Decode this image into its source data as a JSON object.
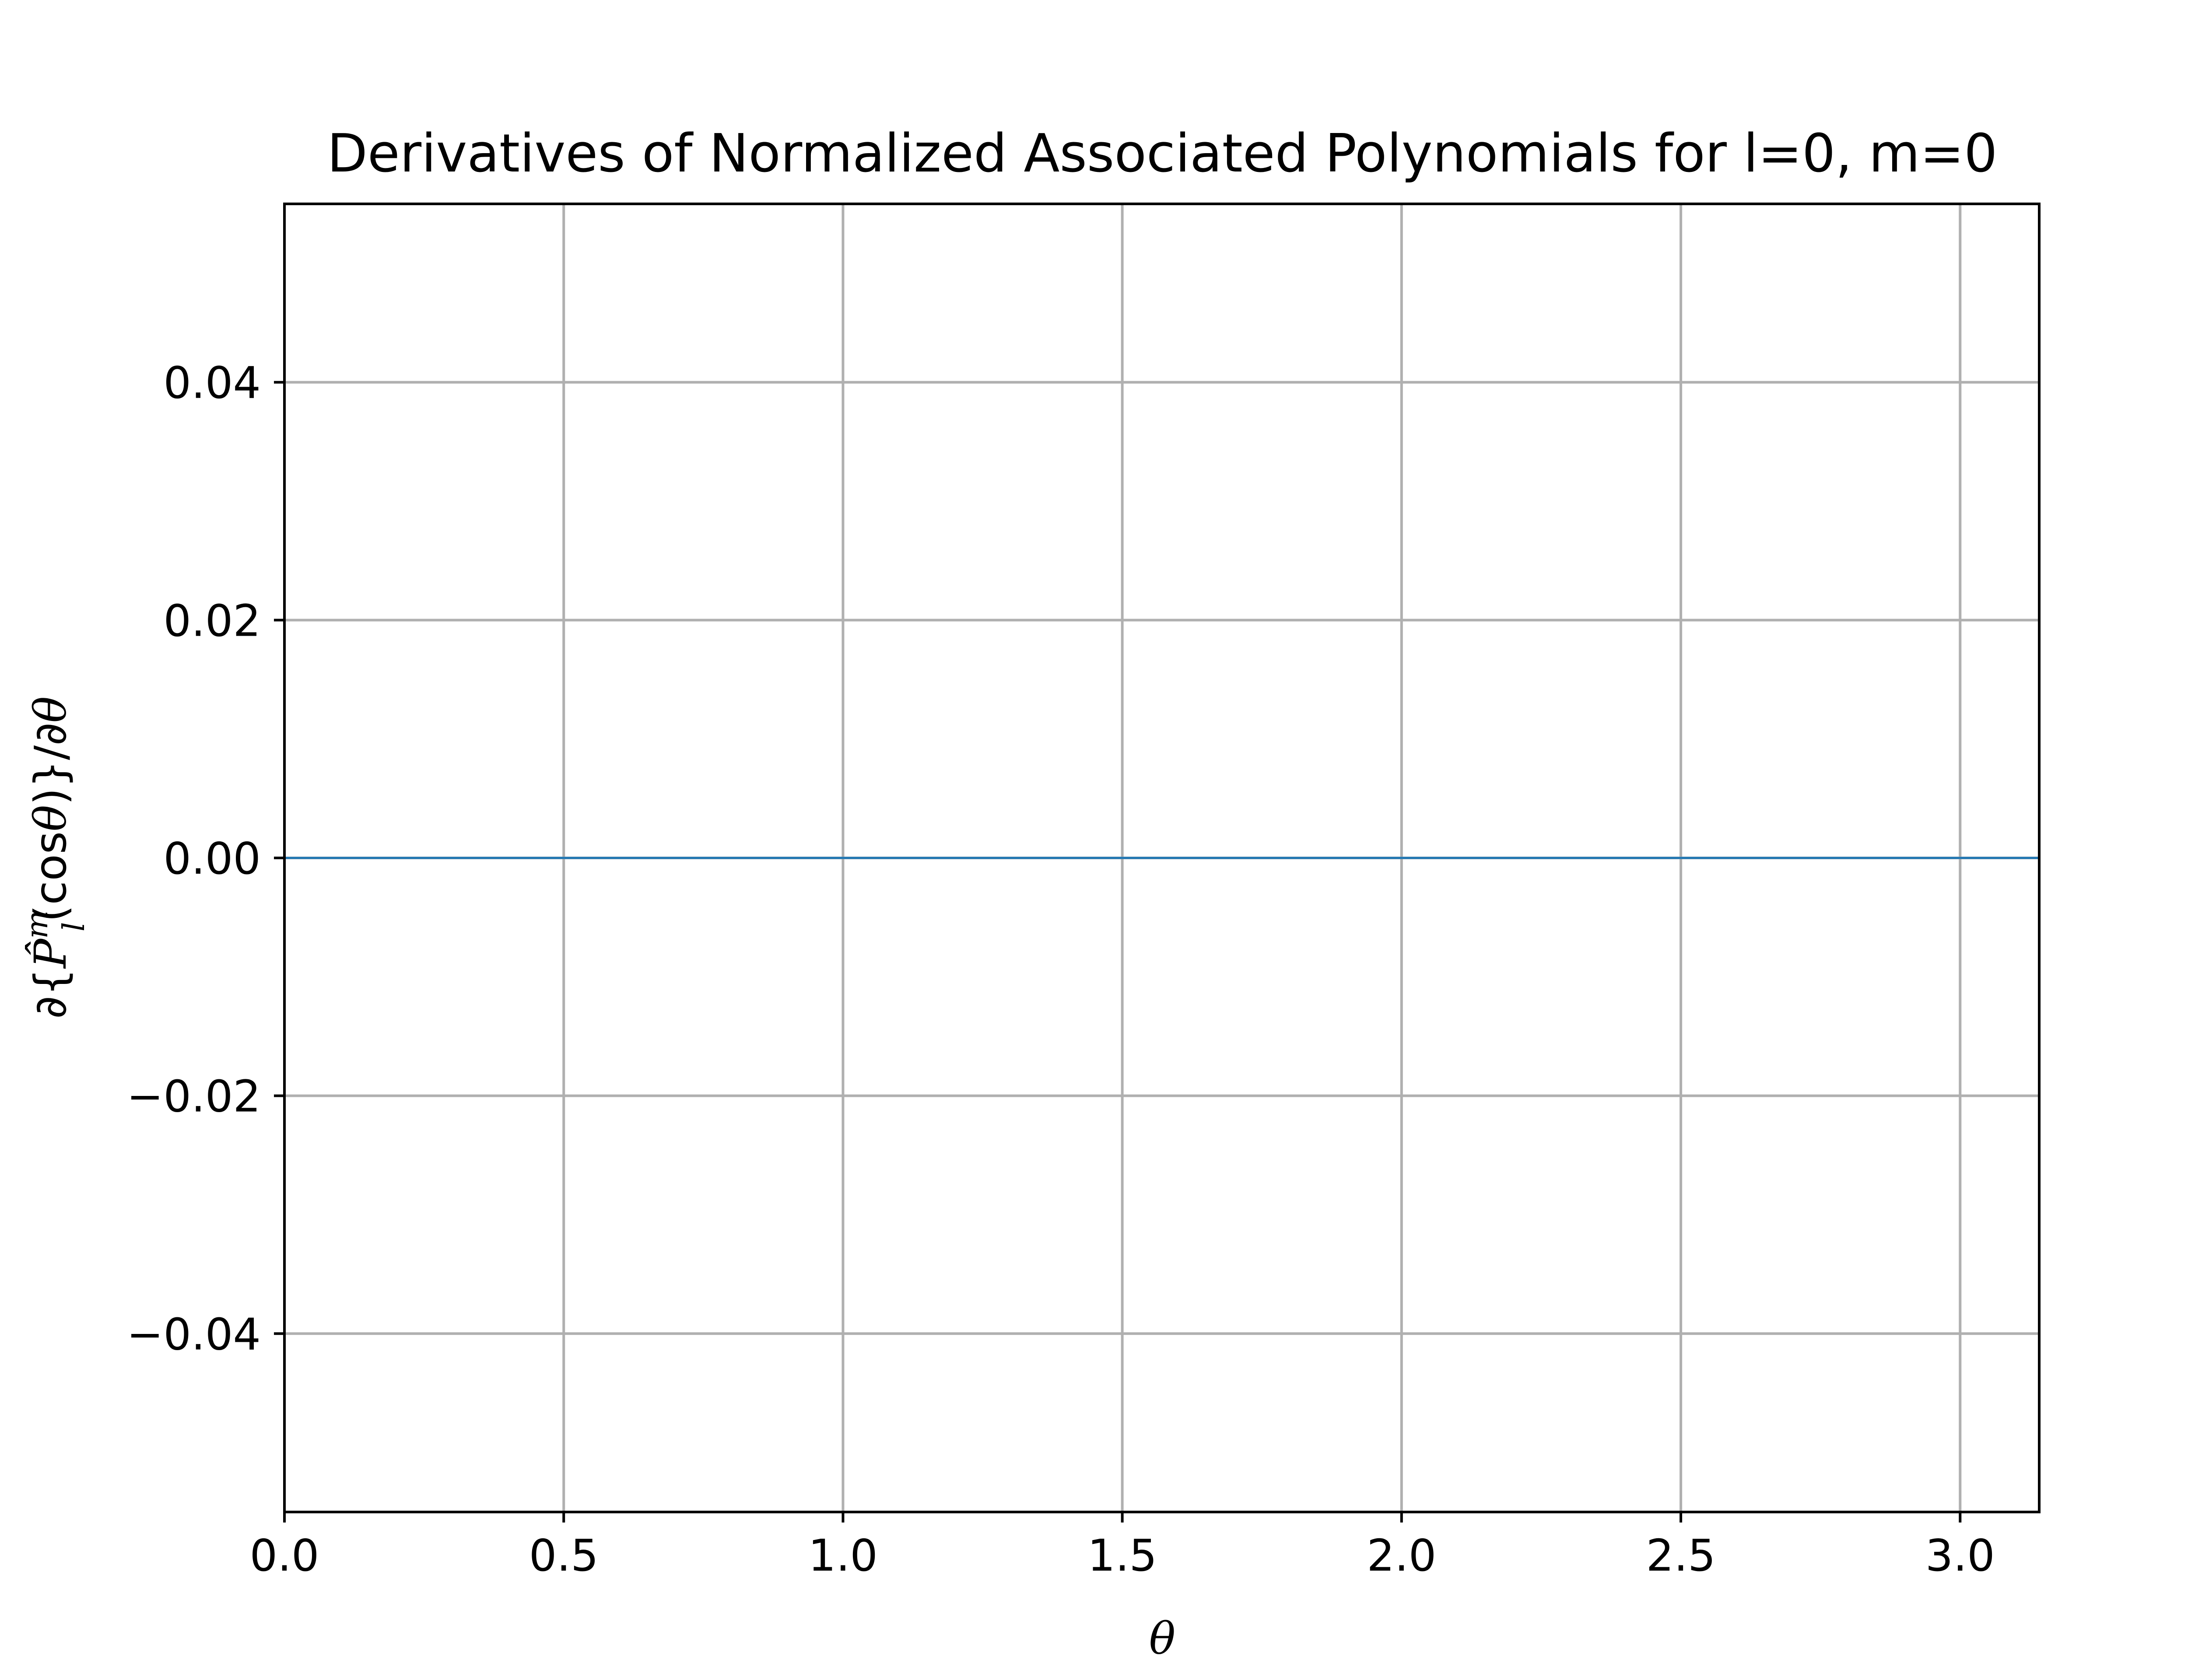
{
  "chart_data": {
    "type": "line",
    "title": "Derivatives of Normalized Associated Polynomials for l=0, m=0",
    "xlabel": "θ",
    "ylabel": {
      "prefix": "∂{",
      "symbol": "P̂",
      "superscript": "m",
      "subscript": "l",
      "argument": "(cos",
      "argument_var": "θ",
      "suffix": ")}/∂",
      "suffix_var": "θ"
    },
    "xlim": [
      0,
      3.14159
    ],
    "ylim": [
      -0.055,
      0.055
    ],
    "x_ticks": [
      0.0,
      0.5,
      1.0,
      1.5,
      2.0,
      2.5,
      3.0
    ],
    "x_tick_labels": [
      "0.0",
      "0.5",
      "1.0",
      "1.5",
      "2.0",
      "2.5",
      "3.0"
    ],
    "y_ticks": [
      0.04,
      0.02,
      0.0,
      -0.02,
      -0.04
    ],
    "y_tick_labels": [
      "0.04",
      "0.02",
      "0.00",
      "−0.02",
      "−0.04"
    ],
    "grid": true,
    "series": [
      {
        "x": [
          0,
          3.14159
        ],
        "y": [
          0,
          0
        ],
        "color": "#1f77b4"
      }
    ]
  }
}
